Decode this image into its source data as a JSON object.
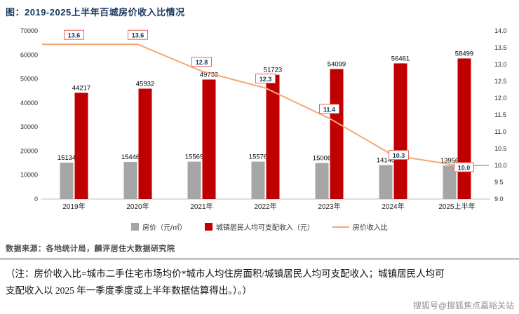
{
  "header": {
    "title": "图：2019-2025上半年百城房价收入比情况"
  },
  "chart_data": {
    "type": "bar+line",
    "title": "图：2019-2025上半年百城房价收入比情况",
    "categories": [
      "2019年",
      "2020年",
      "2021年",
      "2022年",
      "2023年",
      "2024年",
      "2025上半年"
    ],
    "series": [
      {
        "name": "房价（元/㎡）",
        "type": "bar",
        "axis": "left",
        "color": "#a6a6a6",
        "values": [
          15134,
          15446,
          15569,
          15576,
          15006,
          14140,
          13956
        ]
      },
      {
        "name": "城镇居民人均可支配收入（元）",
        "type": "bar",
        "axis": "left",
        "color": "#c00000",
        "values": [
          44217,
          45932,
          49733,
          51723,
          54099,
          56461,
          58499
        ]
      },
      {
        "name": "房价收入比",
        "type": "line",
        "axis": "right",
        "color": "#f4a877",
        "values": [
          13.6,
          13.6,
          12.8,
          12.3,
          11.4,
          10.3,
          10.0
        ]
      }
    ],
    "left_axis": {
      "min": 0,
      "max": 70000,
      "step": 10000,
      "ticks": [
        "0",
        "10000",
        "20000",
        "30000",
        "40000",
        "50000",
        "60000",
        "70000"
      ]
    },
    "right_axis": {
      "min": 9,
      "max": 14,
      "step": 0.5,
      "ticks": [
        "9.0",
        "9.5",
        "10.0",
        "10.5",
        "11.0",
        "11.5",
        "12.0",
        "12.5",
        "13.0",
        "13.5",
        "14.0"
      ]
    },
    "line_label_color": "#17375e",
    "line_label_border": "#e3695a",
    "grid": false,
    "legend_position": "bottom"
  },
  "footer": {
    "source": "数据来源：各地统计局，麟评居住大数据研究院",
    "note_line1": "（注：房价收入比=城市二手住宅市场均价*城市人均住房面积/城镇居民人均可支配收入；城镇居民人均可",
    "note_line2": "支配收入以 2025 年一季度季度或上半年数据估算得出。）。）",
    "watermark": "搜狐号@搜狐焦点嘉峪关站"
  }
}
